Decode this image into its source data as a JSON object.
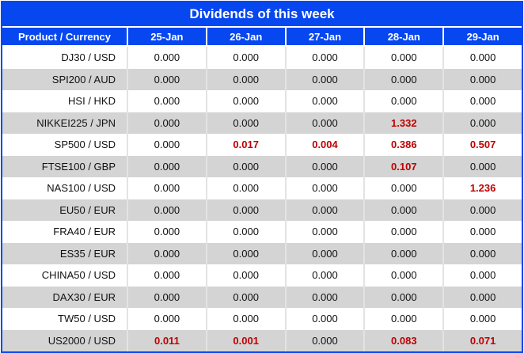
{
  "title": "Dividends of this week",
  "table": {
    "product_header": "Product / Currency",
    "date_headers": [
      "25-Jan",
      "26-Jan",
      "27-Jan",
      "28-Jan",
      "29-Jan"
    ],
    "rows": [
      {
        "product": "DJ30 / USD",
        "values": [
          "0.000",
          "0.000",
          "0.000",
          "0.000",
          "0.000"
        ],
        "highlights": [
          false,
          false,
          false,
          false,
          false
        ]
      },
      {
        "product": "SPI200 / AUD",
        "values": [
          "0.000",
          "0.000",
          "0.000",
          "0.000",
          "0.000"
        ],
        "highlights": [
          false,
          false,
          false,
          false,
          false
        ]
      },
      {
        "product": "HSI / HKD",
        "values": [
          "0.000",
          "0.000",
          "0.000",
          "0.000",
          "0.000"
        ],
        "highlights": [
          false,
          false,
          false,
          false,
          false
        ]
      },
      {
        "product": "NIKKEI225 / JPN",
        "values": [
          "0.000",
          "0.000",
          "0.000",
          "1.332",
          "0.000"
        ],
        "highlights": [
          false,
          false,
          false,
          true,
          false
        ]
      },
      {
        "product": "SP500 / USD",
        "values": [
          "0.000",
          "0.017",
          "0.004",
          "0.386",
          "0.507"
        ],
        "highlights": [
          false,
          true,
          true,
          true,
          true
        ]
      },
      {
        "product": "FTSE100 / GBP",
        "values": [
          "0.000",
          "0.000",
          "0.000",
          "0.107",
          "0.000"
        ],
        "highlights": [
          false,
          false,
          false,
          true,
          false
        ]
      },
      {
        "product": "NAS100 / USD",
        "values": [
          "0.000",
          "0.000",
          "0.000",
          "0.000",
          "1.236"
        ],
        "highlights": [
          false,
          false,
          false,
          false,
          true
        ]
      },
      {
        "product": "EU50 / EUR",
        "values": [
          "0.000",
          "0.000",
          "0.000",
          "0.000",
          "0.000"
        ],
        "highlights": [
          false,
          false,
          false,
          false,
          false
        ]
      },
      {
        "product": "FRA40 / EUR",
        "values": [
          "0.000",
          "0.000",
          "0.000",
          "0.000",
          "0.000"
        ],
        "highlights": [
          false,
          false,
          false,
          false,
          false
        ]
      },
      {
        "product": "ES35 / EUR",
        "values": [
          "0.000",
          "0.000",
          "0.000",
          "0.000",
          "0.000"
        ],
        "highlights": [
          false,
          false,
          false,
          false,
          false
        ]
      },
      {
        "product": "CHINA50 / USD",
        "values": [
          "0.000",
          "0.000",
          "0.000",
          "0.000",
          "0.000"
        ],
        "highlights": [
          false,
          false,
          false,
          false,
          false
        ]
      },
      {
        "product": "DAX30 / EUR",
        "values": [
          "0.000",
          "0.000",
          "0.000",
          "0.000",
          "0.000"
        ],
        "highlights": [
          false,
          false,
          false,
          false,
          false
        ]
      },
      {
        "product": "TW50 / USD",
        "values": [
          "0.000",
          "0.000",
          "0.000",
          "0.000",
          "0.000"
        ],
        "highlights": [
          false,
          false,
          false,
          false,
          false
        ]
      },
      {
        "product": "US2000 / USD",
        "values": [
          "0.011",
          "0.001",
          "0.000",
          "0.083",
          "0.071"
        ],
        "highlights": [
          true,
          true,
          false,
          true,
          true
        ]
      }
    ]
  },
  "colors": {
    "accent_blue": "#0647f0",
    "row_alt": "#d4d4d4",
    "highlight_red": "#c00000",
    "divider": "#e3e3e3"
  }
}
